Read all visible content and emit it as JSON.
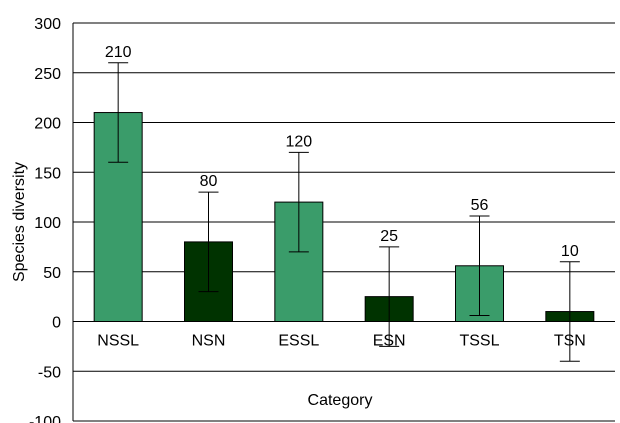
{
  "chart_data": {
    "type": "bar",
    "title": "",
    "xlabel": "Category",
    "ylabel": "Species diversity",
    "ylim": [
      -100,
      300
    ],
    "yticks": [
      -100,
      -50,
      0,
      50,
      100,
      150,
      200,
      250,
      300
    ],
    "yticklabels": [
      "-100",
      "-50",
      "0",
      "50",
      "100",
      "150",
      "200",
      "250",
      "300"
    ],
    "grid": true,
    "legend": "none",
    "categories": [
      "NSSL",
      "NSN",
      "ESSL",
      "ESN",
      "TSSL",
      "TSN"
    ],
    "values": [
      210,
      80,
      120,
      25,
      56,
      10
    ],
    "data_labels": [
      "210",
      "80",
      "120",
      "25",
      "56",
      "10"
    ],
    "error_bars": [
      50,
      50,
      50,
      50,
      50,
      50
    ],
    "bar_colors": [
      "#3a9c6a",
      "#003300",
      "#3a9c6a",
      "#003300",
      "#3a9c6a",
      "#003300"
    ]
  }
}
